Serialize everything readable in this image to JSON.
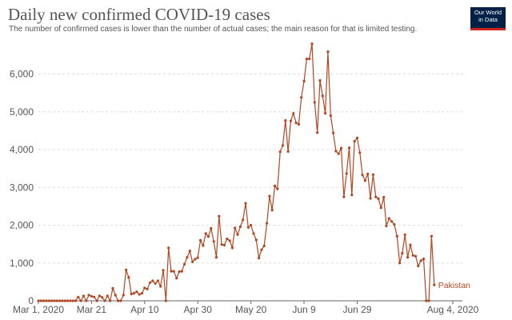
{
  "header": {
    "title": "Daily new confirmed COVID-19 cases",
    "subtitle": "The number of confirmed cases is lower than the number of actual cases; the main reason for that is limited testing.",
    "logo_line1": "Our World",
    "logo_line2": "in Data"
  },
  "colors": {
    "series": "#b04722",
    "grid": "#dddddd",
    "text": "#555555",
    "axis": "#666666"
  },
  "chart_data": {
    "type": "line",
    "title": "Daily new confirmed COVID-19 cases",
    "subtitle": "The number of confirmed cases is lower than the number of actual cases; the main reason for that is limited testing.",
    "xlabel": "",
    "ylabel": "",
    "x_ticks": [
      "Mar 1, 2020",
      "Mar 21",
      "Apr 10",
      "Apr 30",
      "May 20",
      "Jun 9",
      "Jun 29",
      "Aug 4, 2020"
    ],
    "y_ticks": [
      0,
      1000,
      2000,
      3000,
      4000,
      5000,
      6000
    ],
    "y_tick_labels": [
      "0",
      "1,000",
      "2,000",
      "3,000",
      "4,000",
      "5,000",
      "6,000"
    ],
    "ylim": [
      0,
      6900
    ],
    "grid": true,
    "legend": "end-label",
    "x_start": "2020-03-01",
    "x_end": "2020-08-04",
    "series": [
      {
        "name": "Pakistan",
        "values": [
          0,
          0,
          0,
          0,
          0,
          0,
          0,
          0,
          0,
          0,
          0,
          0,
          0,
          0,
          0,
          100,
          0,
          130,
          0,
          150,
          120,
          100,
          0,
          130,
          90,
          0,
          130,
          0,
          330,
          150,
          0,
          0,
          150,
          820,
          620,
          180,
          200,
          240,
          170,
          200,
          340,
          310,
          480,
          530,
          460,
          530,
          380,
          810,
          0,
          1400,
          780,
          780,
          600,
          770,
          780,
          970,
          1150,
          1320,
          1030,
          1100,
          1140,
          1600,
          1460,
          1780,
          1700,
          1920,
          1570,
          1150,
          2240,
          1490,
          1470,
          1640,
          1590,
          1400,
          1930,
          1750,
          1960,
          2140,
          2580,
          1940,
          2000,
          1780,
          1610,
          1130,
          1350,
          1450,
          2050,
          2770,
          2400,
          3040,
          2960,
          3940,
          4110,
          4770,
          3950,
          4760,
          4960,
          4710,
          4670,
          5380,
          5810,
          6400,
          6400,
          6800,
          5250,
          4450,
          5830,
          5420,
          4960,
          6590,
          4900,
          4440,
          3960,
          3890,
          4040,
          2750,
          3370,
          4050,
          2800,
          4220,
          4310,
          3920,
          3330,
          3180,
          3360,
          2710,
          3340,
          2750,
          2700,
          2460,
          2740,
          1980,
          2180,
          2100,
          2020,
          1710,
          1000,
          1260,
          1750,
          1150,
          1480,
          1200,
          1180,
          920,
          1060,
          1110,
          0,
          0,
          1710,
          420
        ]
      }
    ]
  }
}
